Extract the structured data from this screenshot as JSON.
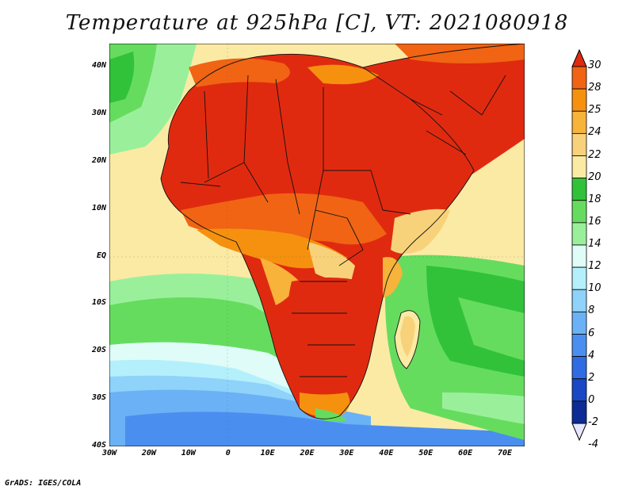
{
  "title": "Temperature at 925hPa [C], VT: 2021080918",
  "credit": "GrADS: IGES/COLA",
  "map": {
    "region": "Africa",
    "projection": "latlon",
    "lon_range": [
      -30,
      75
    ],
    "lat_range": [
      -40,
      45
    ],
    "lon_ticks": [
      "30W",
      "20W",
      "10W",
      "0",
      "10E",
      "20E",
      "30E",
      "40E",
      "50E",
      "60E",
      "70E"
    ],
    "lat_ticks": [
      "40N",
      "30N",
      "20N",
      "10N",
      "EQ",
      "10S",
      "20S",
      "30S",
      "40S"
    ]
  },
  "legend": {
    "labels": [
      "30",
      "28",
      "25",
      "24",
      "22",
      "20",
      "18",
      "16",
      "14",
      "12",
      "10",
      "8",
      "6",
      "4",
      "2",
      "0",
      "-2",
      "-4"
    ],
    "colors": [
      "#e02a10",
      "#f06414",
      "#f5910f",
      "#f7b33a",
      "#f8d27a",
      "#fbeaa4",
      "#31c23a",
      "#66dc5f",
      "#9af09a",
      "#e0fcf8",
      "#b4f0fb",
      "#8fd2fa",
      "#6ab2f5",
      "#4a8fef",
      "#2f6ce2",
      "#1a48c4",
      "#0d2b94",
      "#1a1a6e"
    ]
  }
}
